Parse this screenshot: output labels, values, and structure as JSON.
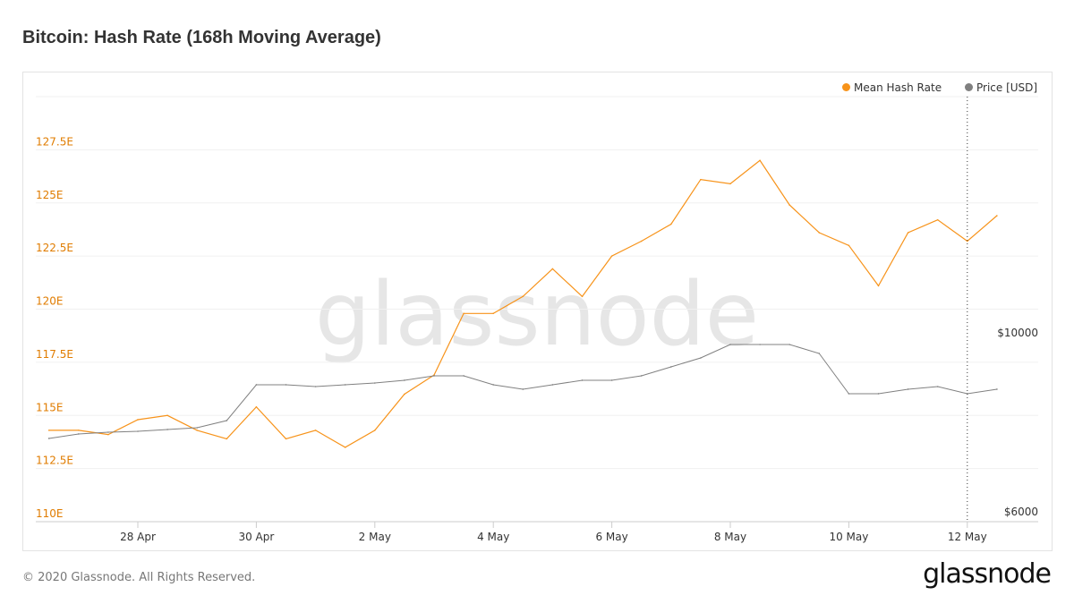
{
  "title": "Bitcoin: Hash Rate (168h Moving Average)",
  "footer": "© 2020 Glassnode. All Rights Reserved.",
  "logo": "glassnode",
  "watermark": "glassnode",
  "colors": {
    "hash": "#f7931a",
    "price": "#808080",
    "axis_left": "#e07c00"
  },
  "chart_data": {
    "type": "line",
    "title": "Bitcoin: Hash Rate (168h Moving Average)",
    "legend_position": "top-right",
    "grid": true,
    "x_ticks": [
      "28 Apr",
      "30 Apr",
      "2 May",
      "4 May",
      "6 May",
      "8 May",
      "10 May",
      "12 May"
    ],
    "y_left": {
      "ticks": [
        "110E",
        "112.5E",
        "115E",
        "117.5E",
        "120E",
        "122.5E",
        "125E",
        "127.5E"
      ],
      "range": [
        110,
        130
      ],
      "unit": "E"
    },
    "y_right": {
      "ticks": [
        "$6000",
        "$10000"
      ],
      "range": [
        6000,
        10000
      ]
    },
    "crosshair_x": "2020-05-12 00:00",
    "x": [
      "2020-04-26 12:00",
      "2020-04-27 00:00",
      "2020-04-27 12:00",
      "2020-04-28 00:00",
      "2020-04-28 12:00",
      "2020-04-29 00:00",
      "2020-04-29 12:00",
      "2020-04-30 00:00",
      "2020-04-30 12:00",
      "2020-05-01 00:00",
      "2020-05-01 12:00",
      "2020-05-02 00:00",
      "2020-05-02 12:00",
      "2020-05-03 00:00",
      "2020-05-03 12:00",
      "2020-05-04 00:00",
      "2020-05-04 12:00",
      "2020-05-05 00:00",
      "2020-05-05 12:00",
      "2020-05-06 00:00",
      "2020-05-06 12:00",
      "2020-05-07 00:00",
      "2020-05-07 12:00",
      "2020-05-08 00:00",
      "2020-05-08 12:00",
      "2020-05-09 00:00",
      "2020-05-09 12:00",
      "2020-05-10 00:00",
      "2020-05-10 12:00",
      "2020-05-11 00:00",
      "2020-05-11 12:00",
      "2020-05-12 00:00",
      "2020-05-12 12:00"
    ],
    "series": [
      {
        "name": "Mean Hash Rate",
        "axis": "left",
        "values": [
          114.3,
          114.3,
          114.1,
          114.8,
          115.0,
          114.3,
          113.9,
          115.4,
          113.9,
          114.3,
          113.5,
          114.3,
          116.0,
          116.9,
          119.8,
          119.8,
          120.6,
          121.9,
          120.6,
          122.5,
          123.2,
          124.0,
          126.1,
          125.9,
          127.0,
          124.9,
          123.6,
          123.0,
          121.1,
          123.6,
          124.2,
          123.2,
          124.4
        ]
      },
      {
        "name": "Price [USD]",
        "axis": "right",
        "values": [
          7842,
          7941,
          7980,
          8000,
          8040,
          8079,
          8238,
          9030,
          9030,
          8990,
          9030,
          9069,
          9129,
          9228,
          9228,
          9030,
          8931,
          9030,
          9129,
          9129,
          9228,
          9426,
          9624,
          9921,
          9921,
          9921,
          9723,
          8832,
          8832,
          8931,
          8990,
          8832,
          8931
        ]
      }
    ]
  }
}
